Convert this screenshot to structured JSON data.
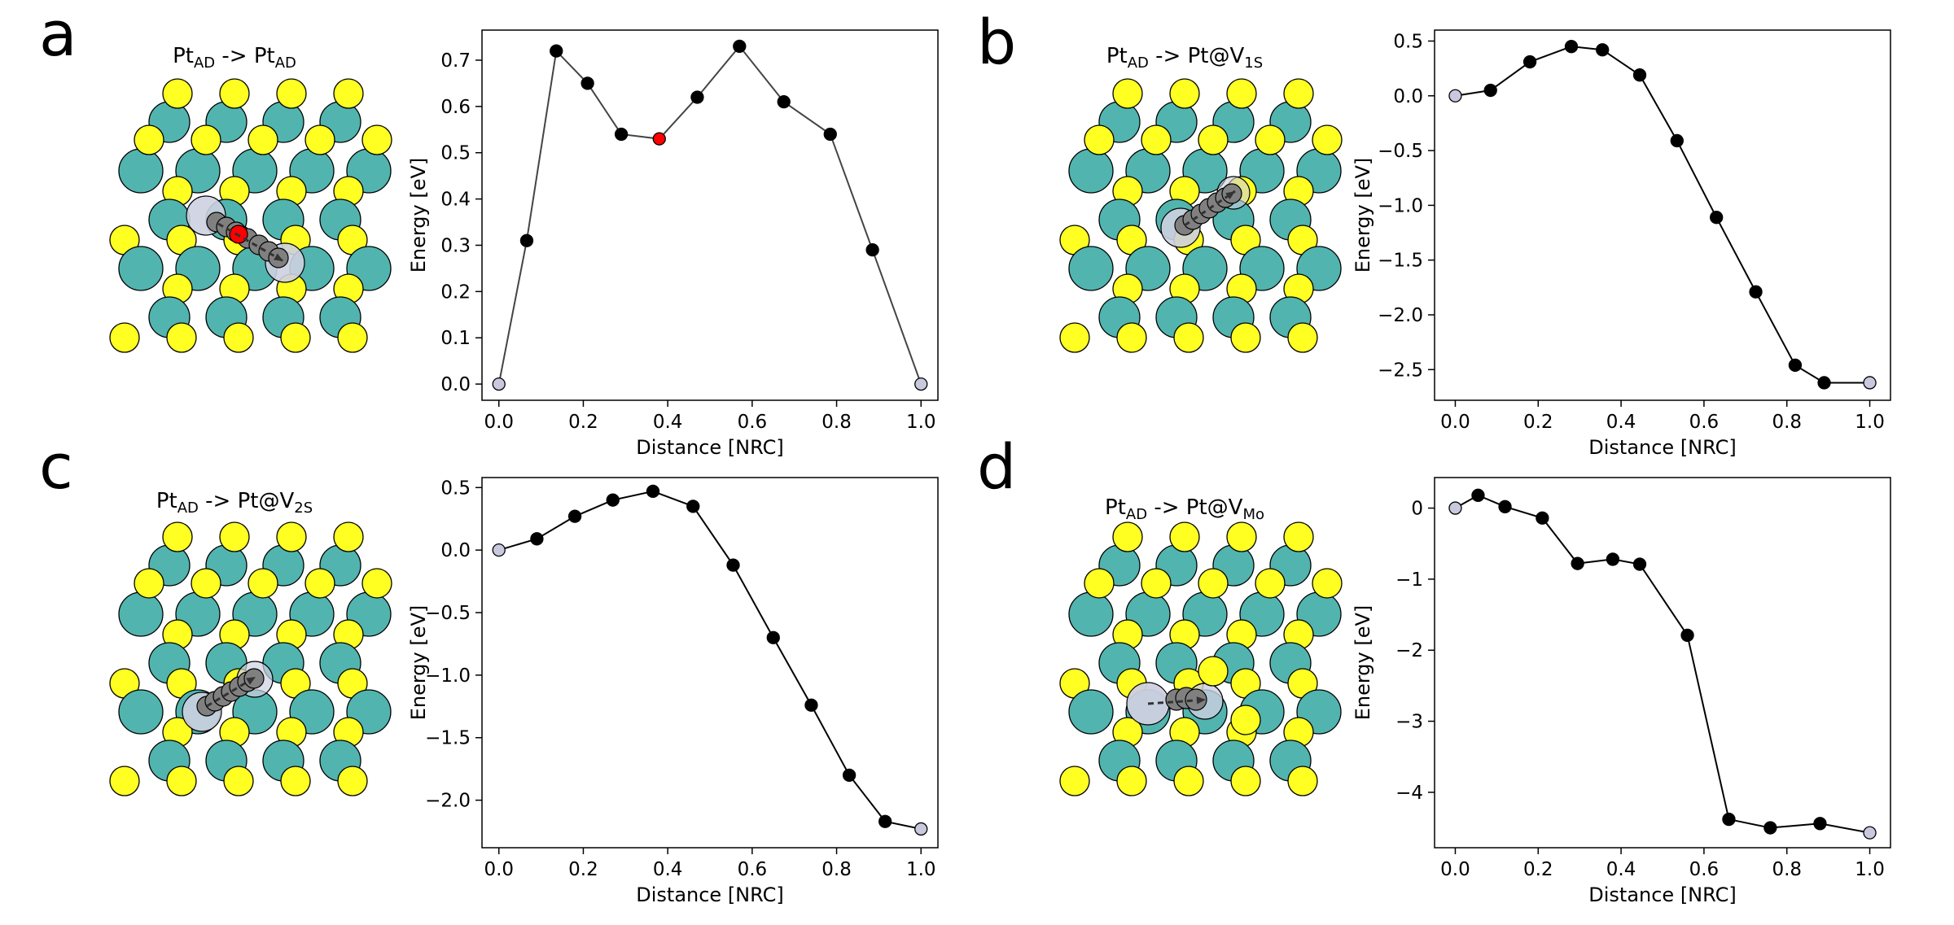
{
  "figure": {
    "panels": [
      {
        "letter": "a",
        "structure_title": {
          "base": "Pt",
          "sub1": "AD",
          "mid": " -> Pt",
          "sub2": "AD"
        },
        "structure_kind": "ad-to-ad"
      },
      {
        "letter": "b",
        "structure_title": {
          "base": "Pt",
          "sub1": "AD",
          "mid": " -> Pt@V",
          "sub2": "1S"
        },
        "structure_kind": "v1s"
      },
      {
        "letter": "c",
        "structure_title": {
          "base": "Pt",
          "sub1": "AD",
          "mid": " -> Pt@V",
          "sub2": "2S"
        },
        "structure_kind": "v2s"
      },
      {
        "letter": "d",
        "structure_title": {
          "base": "Pt",
          "sub1": "AD",
          "mid": " -> Pt@V",
          "sub2": "Mo"
        },
        "structure_kind": "vmo"
      }
    ],
    "colors": {
      "sulfur": "#ffff22",
      "molybdenum": "#52b4ae",
      "pt_endpoint": "#cdd0e0",
      "pt_image": "#808080",
      "transition_point": "#ff0000",
      "endpoint_marker": "#c8c8de",
      "line": "#000000"
    }
  },
  "chart_data": [
    {
      "type": "line",
      "panel": "a",
      "xlabel": "Distance [NRC]",
      "ylabel": "Energy [eV]",
      "xlim": [
        -0.04,
        1.04
      ],
      "ylim": [
        -0.035,
        0.765
      ],
      "xticks": [
        "0.0",
        "0.2",
        "0.4",
        "0.6",
        "0.8",
        "1.0"
      ],
      "yticks": [
        "0.0",
        "0.1",
        "0.2",
        "0.3",
        "0.4",
        "0.5",
        "0.6",
        "0.7"
      ],
      "x": [
        0.0,
        0.066,
        0.136,
        0.21,
        0.29,
        0.38,
        0.47,
        0.57,
        0.675,
        0.785,
        0.885,
        1.0
      ],
      "y": [
        0.0,
        0.31,
        0.72,
        0.65,
        0.54,
        0.53,
        0.62,
        0.73,
        0.61,
        0.54,
        0.29,
        0.0
      ],
      "highlight_index": 5,
      "line_color": "#444444"
    },
    {
      "type": "line",
      "panel": "b",
      "xlabel": "Distance [NRC]",
      "ylabel": "Energy [eV]",
      "xlim": [
        -0.05,
        1.05
      ],
      "ylim": [
        -2.78,
        0.6
      ],
      "xticks": [
        "0.0",
        "0.2",
        "0.4",
        "0.6",
        "0.8",
        "1.0"
      ],
      "yticks": [
        "0.5",
        "0.0",
        "-0.5",
        "-1.0",
        "-1.5",
        "-2.0",
        "-2.5"
      ],
      "x": [
        0.0,
        0.085,
        0.18,
        0.28,
        0.355,
        0.445,
        0.535,
        0.63,
        0.725,
        0.82,
        0.89,
        1.0
      ],
      "y": [
        0.0,
        0.05,
        0.31,
        0.45,
        0.42,
        0.19,
        -0.41,
        -1.11,
        -1.79,
        -2.46,
        -2.62,
        -2.62
      ],
      "highlight_index": null,
      "line_color": "#000000"
    },
    {
      "type": "line",
      "panel": "c",
      "xlabel": "Distance [NRC]",
      "ylabel": "Energy [eV]",
      "xlim": [
        -0.04,
        1.04
      ],
      "ylim": [
        -2.38,
        0.58
      ],
      "xticks": [
        "0.0",
        "0.2",
        "0.4",
        "0.6",
        "0.8",
        "1.0"
      ],
      "yticks": [
        "0.5",
        "0.0",
        "-0.5",
        "-1.0",
        "-1.5",
        "-2.0"
      ],
      "x": [
        0.0,
        0.09,
        0.18,
        0.27,
        0.365,
        0.46,
        0.555,
        0.65,
        0.74,
        0.83,
        0.915,
        1.0
      ],
      "y": [
        0.0,
        0.09,
        0.27,
        0.4,
        0.47,
        0.35,
        -0.12,
        -0.7,
        -1.24,
        -1.8,
        -2.17,
        -2.23
      ],
      "highlight_index": null,
      "line_color": "#000000"
    },
    {
      "type": "line",
      "panel": "d",
      "xlabel": "Distance [NRC]",
      "ylabel": "Energy [eV]",
      "xlim": [
        -0.05,
        1.05
      ],
      "ylim": [
        -4.78,
        0.43
      ],
      "xticks": [
        "0.0",
        "0.2",
        "0.4",
        "0.6",
        "0.8",
        "1.0"
      ],
      "yticks": [
        "0",
        "-1",
        "-2",
        "-3",
        "-4"
      ],
      "x": [
        0.0,
        0.055,
        0.12,
        0.21,
        0.295,
        0.38,
        0.445,
        0.56,
        0.66,
        0.76,
        0.88,
        1.0
      ],
      "y": [
        0.0,
        0.18,
        0.02,
        -0.14,
        -0.78,
        -0.72,
        -0.79,
        -1.79,
        -4.38,
        -4.5,
        -4.44,
        -4.57
      ],
      "highlight_index": null,
      "line_color": "#000000"
    }
  ]
}
